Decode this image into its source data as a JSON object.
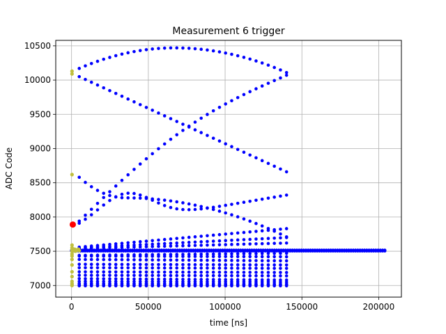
{
  "chart_data": {
    "type": "scatter",
    "title": "Measurement 6 trigger",
    "xlabel": "time [ns]",
    "ylabel": "ADC Code",
    "xlim": [
      -10300,
      214800
    ],
    "ylim": [
      6830,
      10580
    ],
    "xticks": [
      0,
      50000,
      100000,
      150000,
      200000
    ],
    "yticks": [
      7000,
      7500,
      8000,
      8500,
      9000,
      9500,
      10000,
      10500
    ],
    "xtick_labels": [
      "0",
      "50000",
      "100000",
      "150000",
      "200000"
    ],
    "ytick_labels": [
      "7000",
      "7500",
      "8000",
      "8500",
      "9000",
      "9500",
      "10000",
      "10500"
    ],
    "grid": true,
    "colors": {
      "main": "#0000ff",
      "pre": "#bfbf3f",
      "trigger": "#ff0000",
      "grid": "#b0b0b0"
    },
    "series": [
      {
        "role": "pre_trigger",
        "color": "#bfbf3f",
        "points": [
          [
            300,
            10130
          ],
          [
            300,
            10090
          ],
          [
            300,
            8620
          ],
          [
            300,
            7590
          ],
          [
            300,
            7550
          ],
          [
            300,
            7520
          ],
          [
            300,
            7500
          ],
          [
            300,
            7460
          ],
          [
            300,
            7430
          ],
          [
            300,
            7380
          ],
          [
            300,
            7300
          ],
          [
            300,
            7200
          ],
          [
            300,
            7130
          ],
          [
            300,
            7060
          ],
          [
            300,
            7030
          ],
          [
            300,
            7010
          ],
          [
            300,
            7000
          ],
          [
            1000,
            7520
          ],
          [
            1500,
            7510
          ],
          [
            2000,
            7530
          ],
          [
            2500,
            7500
          ],
          [
            3000,
            7520
          ],
          [
            3500,
            7510
          ],
          [
            4500,
            7530
          ],
          [
            5000,
            7510
          ]
        ]
      },
      {
        "role": "trigger",
        "color": "#ff0000",
        "points": [
          [
            800,
            7890
          ]
        ]
      },
      {
        "role": "waveform",
        "color": "#0000ff",
        "curves": [
          {
            "x0": 5000,
            "x1": 140000,
            "n": 35,
            "ya": 10170,
            "yb": 10110,
            "ypeak": 10470,
            "xpeak": 67000
          },
          {
            "x0": 5000,
            "x1": 140000,
            "n": 35,
            "ya": 10050,
            "yb": 8660
          },
          {
            "x0": 5000,
            "x1": 140000,
            "n": 35,
            "ya": 7940,
            "yb": 10070,
            "bulge": 260
          },
          {
            "x0": 5000,
            "x1": 140000,
            "n": 35,
            "ya": 8580,
            "yb": 7710,
            "ypeak": 8280,
            "xpeak": 35000,
            "dip": true
          },
          {
            "x0": 5000,
            "x1": 140000,
            "n": 35,
            "ya": 7810,
            "yb": 8320,
            "bump_x": 35000
          },
          {
            "x0": 5000,
            "x1": 140000,
            "n": 35,
            "ya": 7560,
            "yb": 7830
          },
          {
            "x0": 5000,
            "x1": 140000,
            "n": 35,
            "ya": 7550,
            "yb": 7700
          },
          {
            "x0": 5000,
            "x1": 140000,
            "n": 35,
            "ya": 7540,
            "yb": 7620
          },
          {
            "x0": 5000,
            "x1": 140000,
            "n": 35,
            "ya": 7440,
            "yb": 7470
          },
          {
            "x0": 5000,
            "x1": 140000,
            "n": 35,
            "ya": 7430,
            "yb": 7420
          },
          {
            "x0": 5000,
            "x1": 140000,
            "n": 35,
            "ya": 7380,
            "yb": 7360
          },
          {
            "x0": 5000,
            "x1": 140000,
            "n": 35,
            "ya": 7310,
            "yb": 7300
          },
          {
            "x0": 5000,
            "x1": 140000,
            "n": 35,
            "ya": 7260,
            "yb": 7250
          },
          {
            "x0": 5000,
            "x1": 140000,
            "n": 35,
            "ya": 7200,
            "yb": 7190
          },
          {
            "x0": 5000,
            "x1": 140000,
            "n": 35,
            "ya": 7150,
            "yb": 7140
          },
          {
            "x0": 5000,
            "x1": 140000,
            "n": 35,
            "ya": 7100,
            "yb": 7080
          },
          {
            "x0": 5000,
            "x1": 140000,
            "n": 35,
            "ya": 7060,
            "yb": 7050
          },
          {
            "x0": 5000,
            "x1": 140000,
            "n": 35,
            "ya": 7030,
            "yb": 7020
          },
          {
            "x0": 5000,
            "x1": 140000,
            "n": 35,
            "ya": 7010,
            "yb": 7010
          },
          {
            "x0": 5000,
            "x1": 140000,
            "n": 35,
            "ya": 6995,
            "yb": 6995
          },
          {
            "x0": 0,
            "x1": 204000,
            "n": 140,
            "ya": 7515,
            "yb": 7515
          },
          {
            "x0": 0,
            "x1": 204000,
            "n": 140,
            "ya": 7505,
            "yb": 7505
          }
        ]
      }
    ]
  }
}
